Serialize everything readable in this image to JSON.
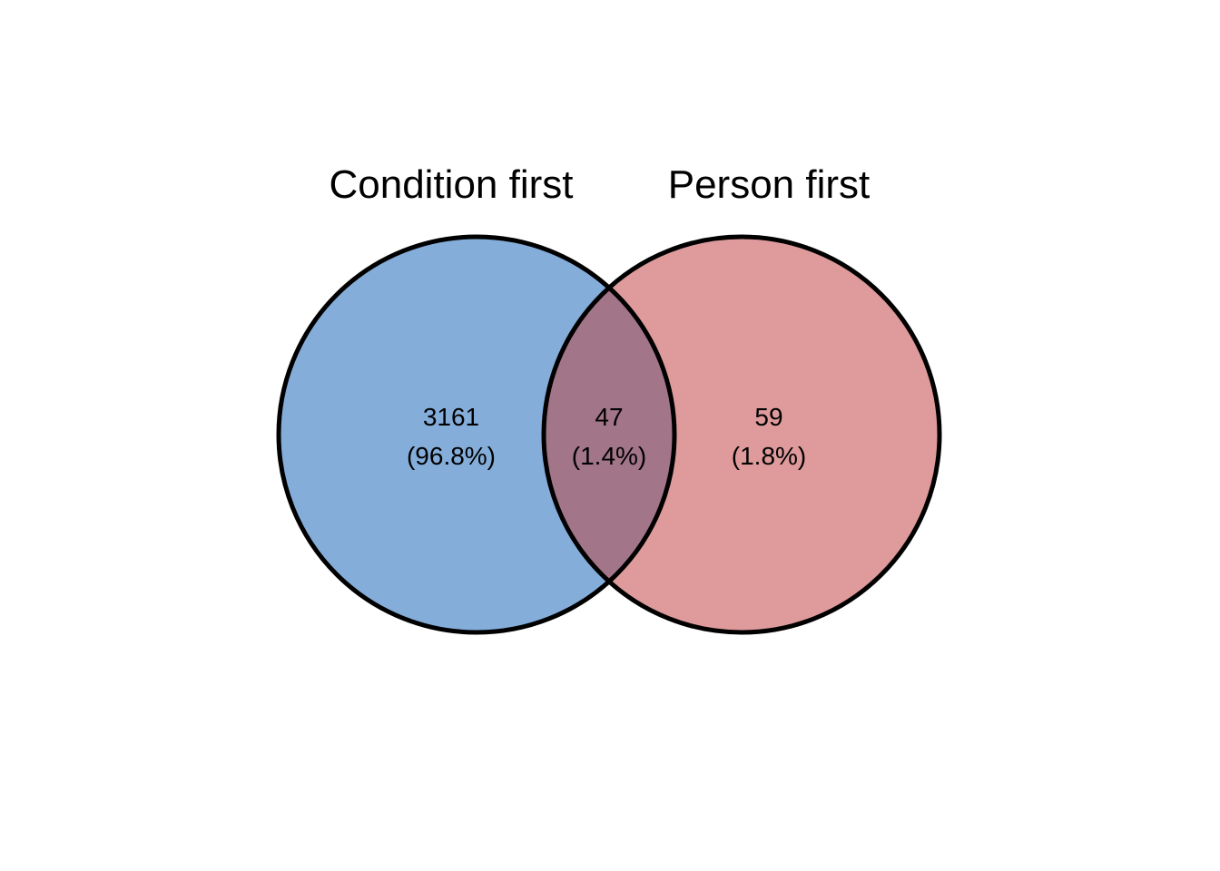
{
  "sets": [
    {
      "name": "Condition first",
      "color": "#85ADDA"
    },
    {
      "name": "Person first",
      "color": "#DF9B9C"
    }
  ],
  "overlap_color": "#A27588",
  "outline_color": "#000000",
  "regions": {
    "left_only": {
      "count": "3161",
      "percent": "(96.8%)"
    },
    "both": {
      "count": "47",
      "percent": "(1.4%)"
    },
    "right_only": {
      "count": "59",
      "percent": "(1.8%)"
    }
  }
}
